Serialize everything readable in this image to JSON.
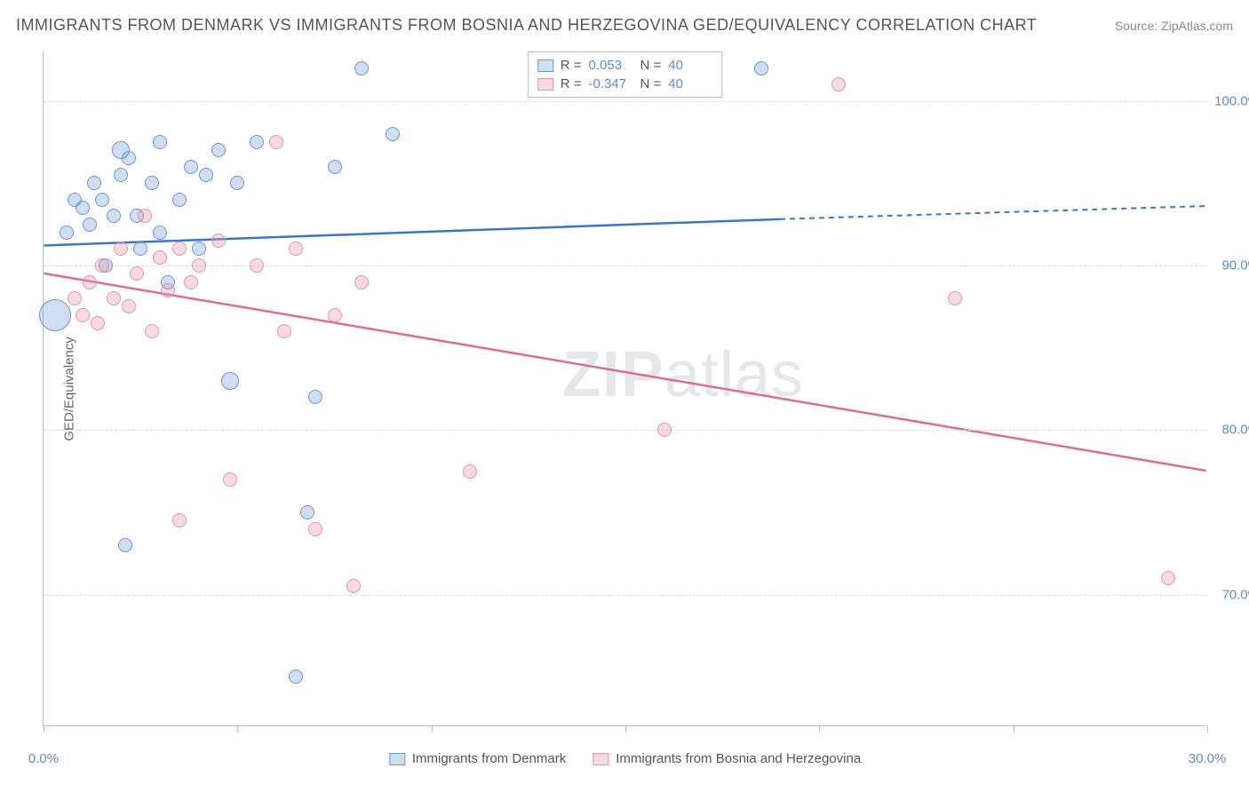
{
  "title": "IMMIGRANTS FROM DENMARK VS IMMIGRANTS FROM BOSNIA AND HERZEGOVINA GED/EQUIVALENCY CORRELATION CHART",
  "source": "Source: ZipAtlas.com",
  "watermark": {
    "part1": "ZIP",
    "part2": "atlas"
  },
  "chart": {
    "type": "scatter",
    "xlim": [
      0,
      30
    ],
    "ylim": [
      62,
      103
    ],
    "x_ticks": [
      0,
      5,
      10,
      15,
      20,
      25,
      30
    ],
    "x_tick_labels": [
      "0.0%",
      "",
      "",
      "",
      "",
      "",
      "30.0%"
    ],
    "y_ticks": [
      70,
      80,
      90,
      100
    ],
    "y_tick_labels": [
      "70.0%",
      "80.0%",
      "90.0%",
      "100.0%"
    ],
    "y_axis_label": "GED/Equivalency",
    "background_color": "#ffffff",
    "grid_color": "#dddddd",
    "axis_color": "#bbbbbb",
    "tick_label_color": "#5b8bd4",
    "tick_label_fontsize": 15,
    "series": [
      {
        "name": "Immigrants from Denmark",
        "color_fill": "rgba(120,160,220,0.35)",
        "color_stroke": "#6a97d0",
        "trend_color": "#3a76c8",
        "r": 0.053,
        "n": 40,
        "trend": {
          "x1": 0,
          "y1": 91.2,
          "x2_solid": 19,
          "y2_solid": 92.8,
          "x2_dash": 30,
          "y2_dash": 93.6
        },
        "points": [
          {
            "x": 0.3,
            "y": 87,
            "r": 18
          },
          {
            "x": 0.6,
            "y": 92,
            "r": 8
          },
          {
            "x": 0.8,
            "y": 94,
            "r": 8
          },
          {
            "x": 1.0,
            "y": 93.5,
            "r": 8
          },
          {
            "x": 1.2,
            "y": 92.5,
            "r": 8
          },
          {
            "x": 1.3,
            "y": 95,
            "r": 8
          },
          {
            "x": 1.5,
            "y": 94,
            "r": 8
          },
          {
            "x": 1.6,
            "y": 90,
            "r": 8
          },
          {
            "x": 1.8,
            "y": 93,
            "r": 8
          },
          {
            "x": 2.0,
            "y": 97,
            "r": 10
          },
          {
            "x": 2.0,
            "y": 95.5,
            "r": 8
          },
          {
            "x": 2.2,
            "y": 96.5,
            "r": 8
          },
          {
            "x": 2.4,
            "y": 93,
            "r": 8
          },
          {
            "x": 2.5,
            "y": 91,
            "r": 8
          },
          {
            "x": 2.8,
            "y": 95,
            "r": 8
          },
          {
            "x": 3.0,
            "y": 97.5,
            "r": 8
          },
          {
            "x": 3.0,
            "y": 92,
            "r": 8
          },
          {
            "x": 3.2,
            "y": 89,
            "r": 8
          },
          {
            "x": 3.5,
            "y": 94,
            "r": 8
          },
          {
            "x": 3.8,
            "y": 96,
            "r": 8
          },
          {
            "x": 4.0,
            "y": 91,
            "r": 8
          },
          {
            "x": 4.2,
            "y": 95.5,
            "r": 8
          },
          {
            "x": 4.5,
            "y": 97,
            "r": 8
          },
          {
            "x": 2.1,
            "y": 73,
            "r": 8
          },
          {
            "x": 4.8,
            "y": 83,
            "r": 10
          },
          {
            "x": 5.0,
            "y": 95,
            "r": 8
          },
          {
            "x": 5.5,
            "y": 97.5,
            "r": 8
          },
          {
            "x": 6.5,
            "y": 65,
            "r": 8
          },
          {
            "x": 6.8,
            "y": 75,
            "r": 8
          },
          {
            "x": 7.0,
            "y": 82,
            "r": 8
          },
          {
            "x": 7.5,
            "y": 96,
            "r": 8
          },
          {
            "x": 8.2,
            "y": 102,
            "r": 8
          },
          {
            "x": 9.0,
            "y": 98,
            "r": 8
          },
          {
            "x": 18.5,
            "y": 102,
            "r": 8
          }
        ]
      },
      {
        "name": "Immigrants from Bosnia and Herzegovina",
        "color_fill": "rgba(235,150,175,0.35)",
        "color_stroke": "#e394ae",
        "trend_color": "#e06a93",
        "r": -0.347,
        "n": 40,
        "trend": {
          "x1": 0,
          "y1": 89.5,
          "x2_solid": 30,
          "y2_solid": 77.5,
          "x2_dash": 30,
          "y2_dash": 77.5
        },
        "points": [
          {
            "x": 0.8,
            "y": 88,
            "r": 8
          },
          {
            "x": 1.0,
            "y": 87,
            "r": 8
          },
          {
            "x": 1.2,
            "y": 89,
            "r": 8
          },
          {
            "x": 1.4,
            "y": 86.5,
            "r": 8
          },
          {
            "x": 1.5,
            "y": 90,
            "r": 8
          },
          {
            "x": 1.8,
            "y": 88,
            "r": 8
          },
          {
            "x": 2.0,
            "y": 91,
            "r": 8
          },
          {
            "x": 2.2,
            "y": 87.5,
            "r": 8
          },
          {
            "x": 2.4,
            "y": 89.5,
            "r": 8
          },
          {
            "x": 2.6,
            "y": 93,
            "r": 8
          },
          {
            "x": 2.8,
            "y": 86,
            "r": 8
          },
          {
            "x": 3.0,
            "y": 90.5,
            "r": 8
          },
          {
            "x": 3.2,
            "y": 88.5,
            "r": 8
          },
          {
            "x": 3.5,
            "y": 91,
            "r": 8
          },
          {
            "x": 3.8,
            "y": 89,
            "r": 8
          },
          {
            "x": 4.0,
            "y": 90,
            "r": 8
          },
          {
            "x": 3.5,
            "y": 74.5,
            "r": 8
          },
          {
            "x": 4.5,
            "y": 91.5,
            "r": 8
          },
          {
            "x": 4.8,
            "y": 77,
            "r": 8
          },
          {
            "x": 5.5,
            "y": 90,
            "r": 8
          },
          {
            "x": 6.0,
            "y": 97.5,
            "r": 8
          },
          {
            "x": 6.2,
            "y": 86,
            "r": 8
          },
          {
            "x": 6.5,
            "y": 91,
            "r": 8
          },
          {
            "x": 7.0,
            "y": 74,
            "r": 8
          },
          {
            "x": 7.5,
            "y": 87,
            "r": 8
          },
          {
            "x": 8.0,
            "y": 70.5,
            "r": 8
          },
          {
            "x": 8.2,
            "y": 89,
            "r": 8
          },
          {
            "x": 11.0,
            "y": 77.5,
            "r": 8
          },
          {
            "x": 16.0,
            "y": 80,
            "r": 8
          },
          {
            "x": 20.5,
            "y": 101,
            "r": 8
          },
          {
            "x": 23.5,
            "y": 88,
            "r": 8
          },
          {
            "x": 29.0,
            "y": 71,
            "r": 8
          }
        ]
      }
    ],
    "legend_top": [
      {
        "swatch_fill": "rgba(120,160,220,0.35)",
        "swatch_stroke": "#6a97d0",
        "r_label": "R =",
        "r_value": "0.053",
        "n_label": "N =",
        "n_value": "40"
      },
      {
        "swatch_fill": "rgba(235,150,175,0.35)",
        "swatch_stroke": "#e394ae",
        "r_label": "R =",
        "r_value": "-0.347",
        "n_label": "N =",
        "n_value": "40"
      }
    ],
    "legend_bottom": [
      {
        "swatch_fill": "rgba(120,160,220,0.35)",
        "swatch_stroke": "#6a97d0",
        "label": "Immigrants from Denmark"
      },
      {
        "swatch_fill": "rgba(235,150,175,0.35)",
        "swatch_stroke": "#e394ae",
        "label": "Immigrants from Bosnia and Herzegovina"
      }
    ]
  }
}
